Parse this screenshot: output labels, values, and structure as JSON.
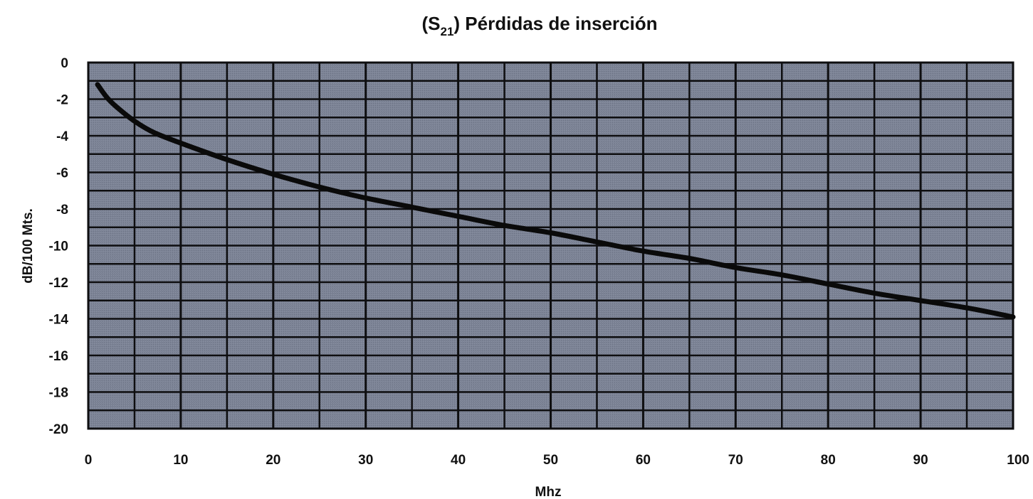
{
  "chart_data": {
    "type": "line",
    "title": {
      "prefix": "(S",
      "subscript": "21",
      "suffix": ") Pérdidas de inserción"
    },
    "xlabel": "Mhz",
    "ylabel": "dB/100 Mts.",
    "xlim": [
      0,
      100
    ],
    "ylim": [
      -20,
      0
    ],
    "x_ticks": [
      0,
      10,
      20,
      30,
      40,
      50,
      60,
      70,
      80,
      90,
      100
    ],
    "y_ticks": [
      0,
      -2,
      -4,
      -6,
      -8,
      -10,
      -12,
      -14,
      -16,
      -18,
      -20
    ],
    "grid": true,
    "legend": "none",
    "colors": {
      "plot_background": "#7b8294",
      "grid_line": "#0e0e10",
      "series_line": "#0a0a0a"
    },
    "series": [
      {
        "x": [
          1,
          2,
          3,
          5,
          7,
          10,
          15,
          20,
          25,
          30,
          35,
          40,
          45,
          50,
          55,
          60,
          65,
          70,
          75,
          80,
          85,
          90,
          95,
          100
        ],
        "y": [
          -1.2,
          -1.9,
          -2.4,
          -3.2,
          -3.8,
          -4.4,
          -5.3,
          -6.1,
          -6.8,
          -7.4,
          -7.9,
          -8.4,
          -8.9,
          -9.3,
          -9.8,
          -10.3,
          -10.7,
          -11.2,
          -11.6,
          -12.1,
          -12.6,
          -13.0,
          -13.4,
          -13.9
        ]
      }
    ]
  }
}
